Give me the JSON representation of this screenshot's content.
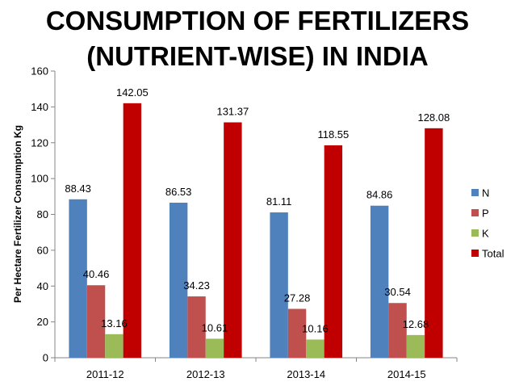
{
  "chart_data": {
    "type": "bar",
    "title_line1": "CONSUMPTION OF FERTILIZERS",
    "title_line2": "(NUTRIENT-WISE) IN INDIA",
    "xlabel": "",
    "ylabel": "Per Hectare Fertilizer Consumption Kg",
    "ylim": [
      0,
      160
    ],
    "yticks": [
      0,
      20,
      40,
      60,
      80,
      100,
      120,
      140,
      160
    ],
    "grid": false,
    "legend_position": "right",
    "categories": [
      "2011-12",
      "2012-13",
      "2013-14",
      "2014-15"
    ],
    "series": [
      {
        "name": "N",
        "color": "#4F81BD",
        "values": [
          88.43,
          86.53,
          81.11,
          84.86
        ],
        "labels": [
          "88.43",
          "86.53",
          "81.11",
          "84.86"
        ]
      },
      {
        "name": "P",
        "color": "#C0504D",
        "values": [
          40.46,
          34.23,
          27.28,
          30.54
        ],
        "labels": [
          "40.46",
          "34.23",
          "27.28",
          "30.54"
        ]
      },
      {
        "name": "K",
        "color": "#9BBB59",
        "values": [
          13.16,
          10.61,
          10.16,
          12.68
        ],
        "labels": [
          "13.16",
          "10.61",
          "10.16",
          "12.68"
        ]
      },
      {
        "name": "Total",
        "color": "#C00000",
        "values": [
          142.05,
          131.37,
          118.55,
          128.08
        ],
        "labels": [
          "142.05",
          "131.37",
          "118.55",
          "128.08"
        ]
      }
    ]
  }
}
